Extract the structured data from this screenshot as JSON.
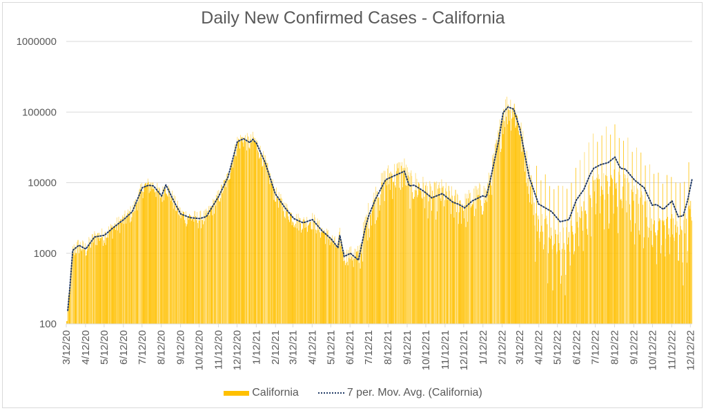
{
  "chart_data": {
    "type": "bar",
    "title": "Daily New Confirmed Cases - California",
    "xlabel": "",
    "ylabel": "",
    "yscale": "log",
    "ylim": [
      100,
      1000000
    ],
    "y_ticks": [
      "100",
      "1000",
      "10000",
      "100000",
      "1000000"
    ],
    "y_tick_values": [
      100,
      1000,
      10000,
      100000,
      1000000
    ],
    "grid": true,
    "legend_position": "bottom",
    "x_ticks": [
      "3/12/20",
      "4/12/20",
      "5/12/20",
      "6/12/20",
      "7/12/20",
      "8/12/20",
      "9/12/20",
      "10/12/20",
      "11/12/20",
      "12/12/20",
      "1/12/21",
      "2/12/21",
      "3/12/21",
      "4/12/21",
      "5/12/21",
      "6/12/21",
      "7/12/21",
      "8/12/21",
      "9/12/21",
      "10/12/21",
      "11/12/21",
      "12/12/21",
      "1/12/22",
      "2/12/22",
      "3/12/22",
      "4/12/22",
      "5/12/22",
      "6/12/22",
      "7/12/22",
      "8/12/22",
      "9/12/22",
      "10/12/22",
      "11/12/22",
      "12/12/22"
    ],
    "x_range_days": [
      0,
      1007
    ],
    "series": [
      {
        "name": "California",
        "kind": "bar",
        "color": "#FFC000",
        "note": "daily values approximated around the moving average",
        "anchor_days": [
          0,
          5,
          10,
          20,
          31,
          45,
          61,
          75,
          92,
          106,
          122,
          132,
          140,
          153,
          160,
          175,
          184,
          199,
          214,
          225,
          245,
          260,
          275,
          285,
          295,
          300,
          306,
          320,
          336,
          351,
          366,
          381,
          396,
          411,
          426,
          437,
          440,
          447,
          457,
          470,
          481,
          487,
          498,
          514,
          530,
          544,
          552,
          560,
          575,
          588,
          605,
          622,
          630,
          636,
          641,
          653,
          670,
          676,
          681,
          696,
          703,
          711,
          720,
          730,
          745,
          760,
          781,
          795,
          809,
          821,
          833,
          843,
          849,
          860,
          872,
          883,
          892,
          900,
          915,
          930,
          943,
          950,
          961,
          975,
          985,
          993,
          1000,
          1007
        ],
        "anchor_values": [
          100,
          300,
          1100,
          1300,
          1150,
          1700,
          1800,
          2300,
          3000,
          3900,
          8500,
          9200,
          9000,
          6500,
          9300,
          5000,
          3600,
          3200,
          3100,
          3300,
          6400,
          12000,
          38000,
          42000,
          37000,
          41000,
          36000,
          19000,
          7000,
          4500,
          3100,
          2700,
          3000,
          2100,
          1600,
          1200,
          1800,
          900,
          1000,
          800,
          2300,
          3500,
          6000,
          11000,
          12800,
          14500,
          9000,
          9200,
          7600,
          6100,
          7000,
          5300,
          5000,
          4700,
          4400,
          5500,
          6500,
          6300,
          9500,
          40000,
          98000,
          118000,
          110000,
          58000,
          12000,
          5000,
          3900,
          2800,
          3000,
          5700,
          8000,
          13000,
          16000,
          18000,
          19200,
          23000,
          16000,
          15500,
          10800,
          8500,
          4800,
          4900,
          4200,
          5500,
          3300,
          3400,
          5600,
          11000
        ]
      },
      {
        "name": "7 per. Mov. Avg. (California)",
        "kind": "line",
        "color": "#1F3864",
        "style": "dotted"
      }
    ]
  },
  "legend": {
    "bar_label": "California",
    "line_label": "7 per. Mov. Avg. (California)"
  }
}
